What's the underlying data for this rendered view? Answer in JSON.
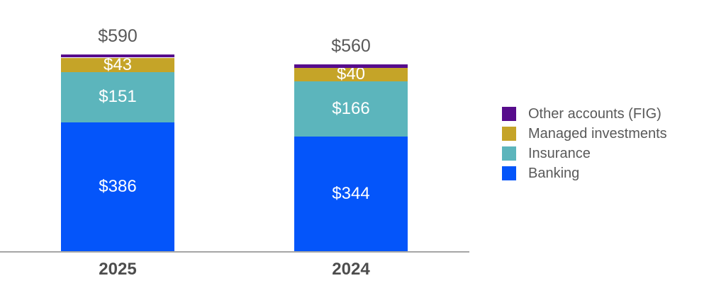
{
  "chart_data": {
    "type": "bar",
    "stacked": true,
    "title": "",
    "categories": [
      "2025",
      "2024"
    ],
    "series": [
      {
        "name": "Banking",
        "color": "#0455fa",
        "values": [
          386,
          344
        ],
        "show_value_labels": true
      },
      {
        "name": "Insurance",
        "color": "#5cb5bc",
        "values": [
          151,
          166
        ],
        "show_value_labels": true
      },
      {
        "name": "Managed investments",
        "color": "#c5a428",
        "values": [
          43,
          40
        ],
        "show_value_labels": true
      },
      {
        "name": "Other accounts (FIG)",
        "color": "#570c8c",
        "values": [
          10,
          10
        ],
        "show_value_labels": false
      }
    ],
    "totals": [
      590,
      560
    ],
    "value_prefix": "$",
    "legend": {
      "position": "right",
      "entries": [
        "Other accounts (FIG)",
        "Managed investments",
        "Insurance",
        "Banking"
      ]
    },
    "axis": {
      "baseline_color": "#a6a6a6",
      "grid": false
    },
    "text_colors": {
      "total_label": "#595959",
      "category_label": "#4d4d4d",
      "segment_label": "#ffffff",
      "legend_label": "#595959"
    }
  }
}
